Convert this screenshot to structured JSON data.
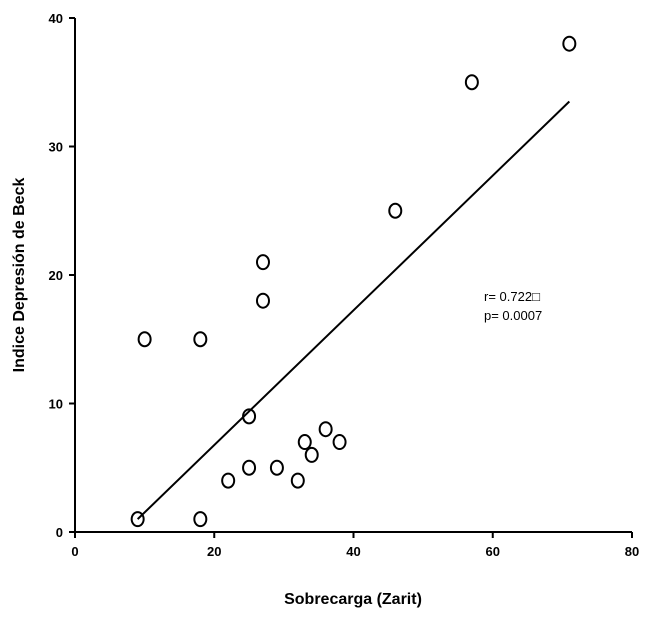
{
  "chart_data": {
    "type": "scatter",
    "title": "",
    "xlabel": "Sobrecarga (Zarit)",
    "ylabel": "Indice Depresión de Beck",
    "xlim": [
      0,
      80
    ],
    "ylim": [
      0,
      40
    ],
    "xticks": [
      0,
      20,
      40,
      60,
      80
    ],
    "yticks": [
      0,
      10,
      20,
      30,
      40
    ],
    "grid": false,
    "legend": "none",
    "marker": "open-circle",
    "points": [
      {
        "x": 9,
        "y": 1
      },
      {
        "x": 10,
        "y": 15
      },
      {
        "x": 18,
        "y": 15
      },
      {
        "x": 18,
        "y": 1
      },
      {
        "x": 22,
        "y": 4
      },
      {
        "x": 25,
        "y": 9
      },
      {
        "x": 25,
        "y": 5
      },
      {
        "x": 27,
        "y": 21
      },
      {
        "x": 27,
        "y": 18
      },
      {
        "x": 29,
        "y": 5
      },
      {
        "x": 32,
        "y": 4
      },
      {
        "x": 33,
        "y": 7
      },
      {
        "x": 34,
        "y": 6
      },
      {
        "x": 36,
        "y": 8
      },
      {
        "x": 38,
        "y": 7
      },
      {
        "x": 46,
        "y": 25
      },
      {
        "x": 57,
        "y": 35
      },
      {
        "x": 71,
        "y": 38
      }
    ],
    "trendline": {
      "x": [
        9,
        71
      ],
      "y": [
        1,
        33.5
      ]
    },
    "annotations": [
      "r= 0.722□",
      "p= 0.0007"
    ]
  }
}
